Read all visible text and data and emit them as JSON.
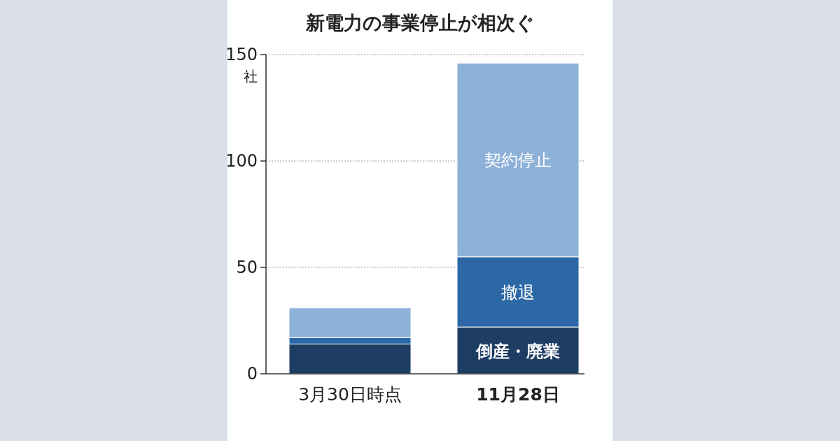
{
  "chart_data": {
    "type": "bar",
    "title": "新電力の事業停止が相次ぐ",
    "ylabel": "社",
    "categories": [
      "3月30日時点",
      "11月28日"
    ],
    "stacked": true,
    "series": [
      {
        "name": "倒産・廃業",
        "color": "#1d3d63",
        "values": [
          14,
          22
        ]
      },
      {
        "name": "撤退",
        "color": "#2c68a6",
        "values": [
          3,
          33
        ]
      },
      {
        "name": "契約停止",
        "color": "#8db1d8",
        "values": [
          14,
          91
        ]
      }
    ],
    "ylim": [
      0,
      150
    ],
    "yticks": [
      0,
      50,
      100,
      150
    ],
    "grid": "y"
  }
}
